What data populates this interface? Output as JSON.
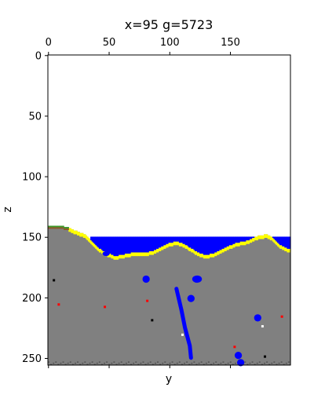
{
  "chart_data": {
    "type": "heatmap",
    "title": "x=95 g=5723",
    "xlabel": "y",
    "ylabel": "z",
    "x_axis_position": "top",
    "xlim": [
      0,
      199
    ],
    "ylim": [
      256,
      0
    ],
    "xticks": [
      0,
      50,
      100,
      150
    ],
    "yticks": [
      0,
      50,
      100,
      150,
      200,
      250
    ],
    "grid": false,
    "colors": {
      "background": "#ffffff",
      "stone": "#808080",
      "sand": "#ffff00",
      "water": "#0000ff",
      "grass": "#3c9a28",
      "dirt": "#8b5a2b",
      "bedrock": "#555555",
      "red_ore": "#ff0000",
      "black_ore": "#000000",
      "white_ore": "#ffffff"
    },
    "layers": {
      "water_level": 150,
      "water_extent": [
        35,
        199
      ],
      "sand_thickness": 3,
      "terrain_surface": [
        [
          0,
          141
        ],
        [
          10,
          141
        ],
        [
          16,
          142
        ],
        [
          22,
          145
        ],
        [
          30,
          148
        ],
        [
          35,
          153
        ],
        [
          40,
          158
        ],
        [
          45,
          162
        ],
        [
          50,
          164
        ],
        [
          55,
          166
        ],
        [
          60,
          165
        ],
        [
          65,
          164
        ],
        [
          70,
          163
        ],
        [
          80,
          163
        ],
        [
          85,
          162
        ],
        [
          90,
          160
        ],
        [
          95,
          157
        ],
        [
          100,
          155
        ],
        [
          105,
          154
        ],
        [
          110,
          155
        ],
        [
          115,
          158
        ],
        [
          120,
          161
        ],
        [
          125,
          164
        ],
        [
          130,
          165
        ],
        [
          135,
          164
        ],
        [
          140,
          162
        ],
        [
          145,
          159
        ],
        [
          150,
          157
        ],
        [
          155,
          155
        ],
        [
          160,
          154
        ],
        [
          165,
          153
        ],
        [
          170,
          150
        ],
        [
          175,
          149
        ],
        [
          180,
          148
        ],
        [
          185,
          151
        ],
        [
          190,
          156
        ],
        [
          195,
          159
        ],
        [
          199,
          160
        ]
      ],
      "grass_extent": [
        0,
        16
      ],
      "bedrock_level": 253
    },
    "water_pockets": [
      {
        "y": 48,
        "z": 164,
        "rx": 3,
        "rz": 2
      },
      {
        "y": 81,
        "z": 185,
        "rx": 3,
        "rz": 3
      },
      {
        "y": 123,
        "z": 185,
        "rx": 4,
        "rz": 3
      },
      {
        "y": 118,
        "z": 201,
        "rx": 3,
        "rz": 3
      },
      {
        "y": 173,
        "z": 217,
        "rx": 3,
        "rz": 3
      },
      {
        "y": 157,
        "z": 248,
        "rx": 3,
        "rz": 3
      },
      {
        "y": 159,
        "z": 254,
        "rx": 3,
        "rz": 3
      }
    ],
    "water_vein": [
      [
        106,
        193
      ],
      [
        110,
        210
      ],
      [
        113,
        225
      ],
      [
        117,
        240
      ],
      [
        118,
        250
      ]
    ],
    "ores": [
      {
        "y": 4,
        "z": 185,
        "kind": "black_ore"
      },
      {
        "y": 8,
        "z": 205,
        "kind": "red_ore"
      },
      {
        "y": 46,
        "z": 207,
        "kind": "red_ore"
      },
      {
        "y": 81,
        "z": 202,
        "kind": "red_ore"
      },
      {
        "y": 85,
        "z": 218,
        "kind": "black_ore"
      },
      {
        "y": 110,
        "z": 230,
        "kind": "white_ore"
      },
      {
        "y": 153,
        "z": 240,
        "kind": "red_ore"
      },
      {
        "y": 176,
        "z": 223,
        "kind": "white_ore"
      },
      {
        "y": 178,
        "z": 248,
        "kind": "black_ore"
      },
      {
        "y": 192,
        "z": 215,
        "kind": "red_ore"
      }
    ]
  }
}
